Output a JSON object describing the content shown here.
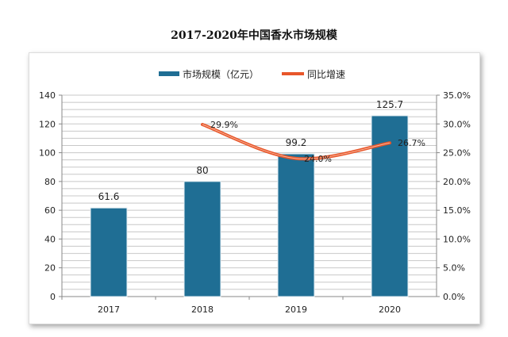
{
  "chart_data": {
    "type": "bar+line",
    "title": "2017-2020年中国香水市场规模",
    "categories": [
      "2017",
      "2018",
      "2019",
      "2020"
    ],
    "series": [
      {
        "name": "市场规模（亿元）",
        "type": "bar",
        "axis": "left",
        "values": [
          61.6,
          80,
          99.2,
          125.7
        ],
        "labels": [
          "61.6",
          "80",
          "99.2",
          "125.7"
        ],
        "color": "#1f6e94"
      },
      {
        "name": "同比增速",
        "type": "line",
        "axis": "right",
        "values": [
          null,
          29.9,
          24.0,
          26.7
        ],
        "labels": [
          "",
          "29.9%",
          "24.0%",
          "26.7%"
        ],
        "color": "#e8562a"
      }
    ],
    "y_left": {
      "range": [
        0,
        140
      ],
      "ticks": [
        "0",
        "20",
        "40",
        "60",
        "80",
        "100",
        "120",
        "140"
      ]
    },
    "y_right": {
      "range": [
        0,
        35
      ],
      "ticks": [
        "0.0%",
        "5.0%",
        "10.0%",
        "15.0%",
        "20.0%",
        "25.0%",
        "30.0%",
        "35.0%"
      ]
    },
    "grid": true,
    "legend": "top"
  }
}
